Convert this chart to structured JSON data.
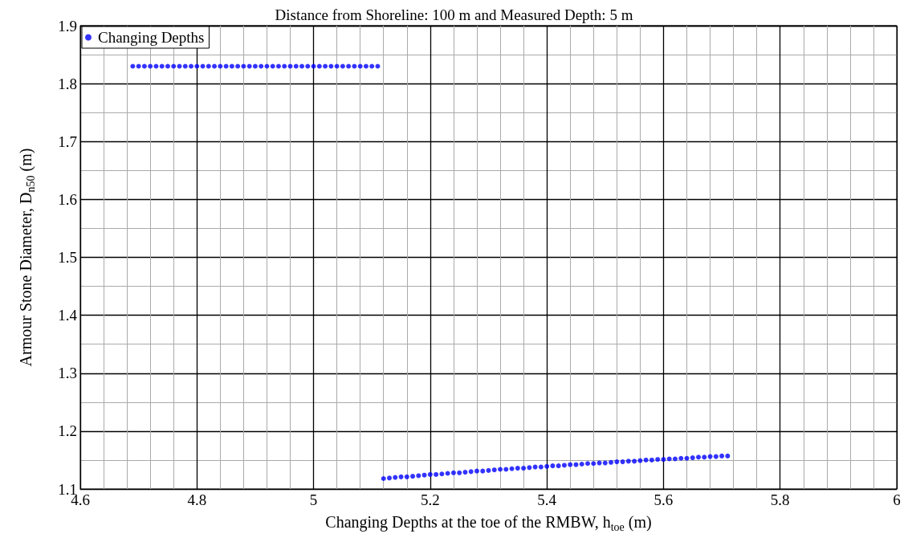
{
  "chart_data": {
    "type": "scatter",
    "title": "Distance from Shoreline: 100 m and Measured Depth: 5 m",
    "xlabel": "Changing Depths at the toe of the RMBW, h$_{toe}$ (m)",
    "ylabel": "Armour Stone Diameter, D$_{n50}$ (m)",
    "xlim": [
      4.6,
      6
    ],
    "xticks": [
      4.6,
      4.8,
      5,
      5.2,
      5.4,
      5.6,
      5.8,
      6
    ],
    "ylim": [
      1.1,
      1.9
    ],
    "yticks": [
      1.1,
      1.2,
      1.3,
      1.4,
      1.5,
      1.6,
      1.7,
      1.8,
      1.9
    ],
    "grid": true,
    "legend": "top left",
    "marker": "circle",
    "series": [
      {
        "name": "Changing Depths",
        "color": "#0000ff",
        "x": [
          4.69,
          4.7,
          4.71,
          4.72,
          4.73,
          4.74,
          4.75,
          4.76,
          4.77,
          4.78,
          4.79,
          4.8,
          4.81,
          4.82,
          4.83,
          4.84,
          4.85,
          4.86,
          4.87,
          4.88,
          4.89,
          4.9,
          4.91,
          4.92,
          4.93,
          4.94,
          4.95,
          4.96,
          4.97,
          4.98,
          4.99,
          5.0,
          5.01,
          5.02,
          5.03,
          5.04,
          5.05,
          5.06,
          5.07,
          5.08,
          5.09,
          5.1,
          5.11,
          5.12,
          5.13,
          5.14,
          5.15,
          5.16,
          5.17,
          5.18,
          5.19,
          5.2,
          5.21,
          5.22,
          5.23,
          5.24,
          5.25,
          5.26,
          5.27,
          5.28,
          5.29,
          5.3,
          5.31,
          5.32,
          5.33,
          5.34,
          5.35,
          5.36,
          5.37,
          5.38,
          5.39,
          5.4,
          5.41,
          5.42,
          5.43,
          5.44,
          5.45,
          5.46,
          5.47,
          5.48,
          5.49,
          5.5,
          5.51,
          5.52,
          5.53,
          5.54,
          5.55,
          5.56,
          5.57,
          5.58,
          5.59,
          5.6,
          5.61,
          5.62,
          5.63,
          5.64,
          5.65,
          5.66,
          5.67,
          5.68,
          5.69,
          5.7,
          5.71
        ],
        "values": [
          1.83,
          1.83,
          1.83,
          1.83,
          1.83,
          1.83,
          1.83,
          1.83,
          1.83,
          1.83,
          1.83,
          1.83,
          1.83,
          1.83,
          1.83,
          1.83,
          1.83,
          1.83,
          1.83,
          1.83,
          1.83,
          1.83,
          1.83,
          1.83,
          1.83,
          1.83,
          1.83,
          1.83,
          1.83,
          1.83,
          1.83,
          1.83,
          1.83,
          1.83,
          1.83,
          1.83,
          1.83,
          1.83,
          1.83,
          1.83,
          1.83,
          1.83,
          1.83,
          1.118,
          1.119,
          1.12,
          1.121,
          1.121,
          1.122,
          1.123,
          1.124,
          1.125,
          1.125,
          1.126,
          1.127,
          1.128,
          1.128,
          1.129,
          1.13,
          1.131,
          1.131,
          1.132,
          1.133,
          1.134,
          1.134,
          1.135,
          1.136,
          1.136,
          1.137,
          1.138,
          1.138,
          1.139,
          1.14,
          1.14,
          1.141,
          1.142,
          1.142,
          1.143,
          1.144,
          1.144,
          1.145,
          1.145,
          1.146,
          1.147,
          1.147,
          1.148,
          1.148,
          1.149,
          1.15,
          1.15,
          1.151,
          1.151,
          1.152,
          1.152,
          1.153,
          1.153,
          1.154,
          1.155,
          1.155,
          1.156,
          1.156,
          1.157,
          1.157
        ]
      }
    ]
  }
}
